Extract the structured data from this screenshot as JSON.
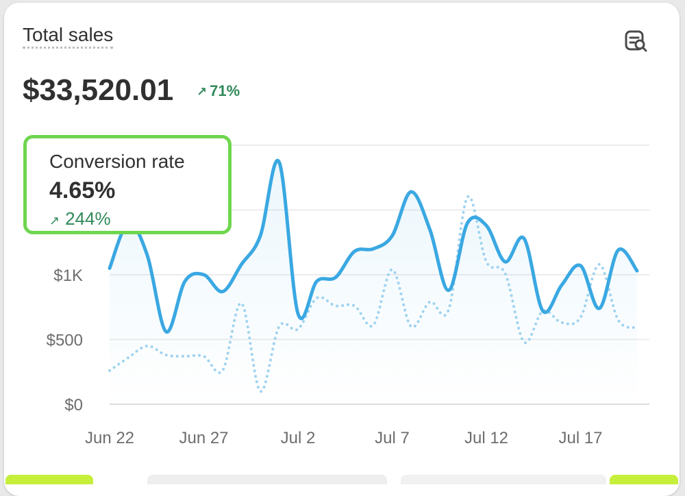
{
  "card": {
    "title": "Total sales",
    "value": "$33,520.01",
    "delta": "71%",
    "delta_direction": "up",
    "insight_icon": "chart-search-icon"
  },
  "tooltip": {
    "label": "Conversion rate",
    "value": "4.65%",
    "delta": "244%",
    "delta_direction": "up"
  },
  "colors": {
    "primary_line": "#3aa8e2",
    "comparison_line": "#9fd3ef",
    "positive": "#2f8a59",
    "highlight_border": "#6fd64f",
    "text": "#303030",
    "muted_text": "#6d6d6d"
  },
  "chart_data": {
    "type": "line",
    "x": [
      "Jun 22",
      "Jun 23",
      "Jun 24",
      "Jun 25",
      "Jun 26",
      "Jun 27",
      "Jun 28",
      "Jun 29",
      "Jun 30",
      "Jul 1",
      "Jul 2",
      "Jul 3",
      "Jul 4",
      "Jul 5",
      "Jul 6",
      "Jul 7",
      "Jul 8",
      "Jul 9",
      "Jul 10",
      "Jul 11",
      "Jul 12",
      "Jul 13",
      "Jul 14",
      "Jul 15",
      "Jul 16",
      "Jul 17",
      "Jul 18",
      "Jul 19",
      "Jul 20"
    ],
    "x_tick_labels": [
      "Jun 22",
      "Jun 27",
      "Jul 2",
      "Jul 7",
      "Jul 12",
      "Jul 17"
    ],
    "y_tick_labels": [
      "$0",
      "$500",
      "$1K"
    ],
    "ylim": [
      0,
      2000
    ],
    "grid": true,
    "series": [
      {
        "style": "solid",
        "values": [
          1050,
          1400,
          1150,
          560,
          950,
          1000,
          870,
          1080,
          1300,
          1870,
          700,
          950,
          980,
          1180,
          1200,
          1300,
          1640,
          1350,
          880,
          1400,
          1380,
          1100,
          1280,
          720,
          920,
          1070,
          740,
          1190,
          1030
        ]
      },
      {
        "style": "dotted",
        "values": [
          260,
          360,
          450,
          380,
          370,
          370,
          260,
          780,
          100,
          600,
          580,
          820,
          760,
          760,
          610,
          1040,
          600,
          790,
          730,
          1600,
          1100,
          1010,
          480,
          720,
          630,
          670,
          1080,
          650,
          590
        ]
      }
    ]
  }
}
